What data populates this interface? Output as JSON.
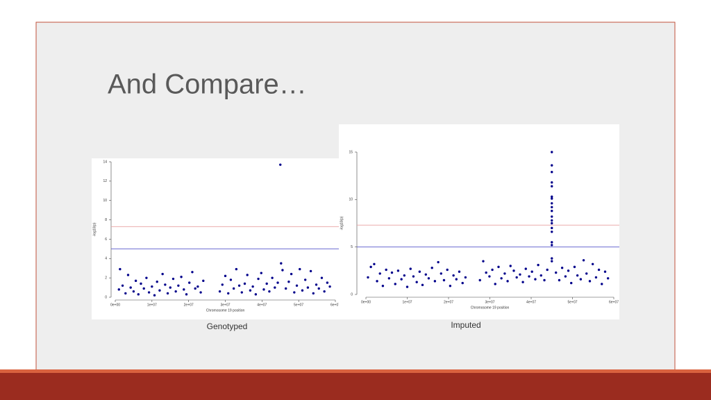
{
  "slide": {
    "title": "And Compare…",
    "captions": [
      "Genotyped",
      "Imputed"
    ]
  },
  "chart_data": [
    {
      "type": "scatter",
      "xlabel": "Chromosome 19 position",
      "ylabel": "-log10(p)",
      "color": "#00008b",
      "xlim": [
        0,
        60000000.0
      ],
      "ylim": [
        0,
        14
      ],
      "xticks": [
        {
          "value": 0,
          "label": "0e+00"
        },
        {
          "value": 10000000.0,
          "label": "1e+07"
        },
        {
          "value": 20000000.0,
          "label": "2e+07"
        },
        {
          "value": 30000000.0,
          "label": "3e+07"
        },
        {
          "value": 40000000.0,
          "label": "4e+07"
        },
        {
          "value": 50000000.0,
          "label": "5e+07"
        },
        {
          "value": 60000000.0,
          "label": "6e+07"
        }
      ],
      "yticks": [
        0,
        2,
        4,
        6,
        8,
        10,
        12,
        14
      ],
      "hlines": [
        {
          "value": 7.3,
          "color": "#e8a0a0"
        },
        {
          "value": 5,
          "color": "#5555cc"
        }
      ],
      "x": [
        1000000.0,
        1300000.0,
        2000000.0,
        2800000.0,
        3500000.0,
        4200000.0,
        5000000.0,
        5600000.0,
        6300000.0,
        7000000.0,
        7800000.0,
        8500000.0,
        9200000.0,
        10000000.0,
        10700000.0,
        11400000.0,
        12100000.0,
        12900000.0,
        13600000.0,
        14300000.0,
        15000000.0,
        15800000.0,
        16500000.0,
        17200000.0,
        18000000.0,
        18700000.0,
        19400000.0,
        20200000.0,
        21000000.0,
        21800000.0,
        22500000.0,
        23300000.0,
        24000000.0,
        28500000.0,
        29200000.0,
        30000000.0,
        30800000.0,
        31500000.0,
        32300000.0,
        33000000.0,
        33800000.0,
        34500000.0,
        35300000.0,
        36000000.0,
        36800000.0,
        37500000.0,
        38300000.0,
        39000000.0,
        39800000.0,
        40500000.0,
        41300000.0,
        42000000.0,
        42800000.0,
        43500000.0,
        44300000.0,
        45000000.0,
        45200000.0,
        45600000.0,
        46500000.0,
        47300000.0,
        48000000.0,
        48800000.0,
        49500000.0,
        50300000.0,
        51000000.0,
        51800000.0,
        52500000.0,
        53300000.0,
        54000000.0,
        54800000.0,
        55500000.0,
        56300000.0,
        57000000.0,
        57800000.0,
        58500000.0
      ],
      "values": [
        0.8,
        2.9,
        1.2,
        0.4,
        2.3,
        1.0,
        0.6,
        1.7,
        0.3,
        1.4,
        0.9,
        2.0,
        0.5,
        1.1,
        0.2,
        1.6,
        0.7,
        2.4,
        1.3,
        0.4,
        1.0,
        1.9,
        0.6,
        1.2,
        2.1,
        0.8,
        0.3,
        1.5,
        2.6,
        0.9,
        1.1,
        0.5,
        1.7,
        0.6,
        1.3,
        2.2,
        0.4,
        1.8,
        0.9,
        2.9,
        1.2,
        0.5,
        1.4,
        2.3,
        0.7,
        1.1,
        0.3,
        1.9,
        2.5,
        0.8,
        1.4,
        0.6,
        2.0,
        1.0,
        1.5,
        13.7,
        3.5,
        2.8,
        0.9,
        1.6,
        2.4,
        0.5,
        1.2,
        2.9,
        0.7,
        1.8,
        1.0,
        2.7,
        0.4,
        1.3,
        0.9,
        2.0,
        0.6,
        1.5,
        1.1
      ]
    },
    {
      "type": "scatter",
      "xlabel": "Chromosome 19 position",
      "ylabel": "-log10(p)",
      "color": "#00008b",
      "xlim": [
        0,
        60000000.0
      ],
      "ylim": [
        0,
        15
      ],
      "xticks": [
        {
          "value": 0,
          "label": "0e+00"
        },
        {
          "value": 10000000.0,
          "label": "1e+07"
        },
        {
          "value": 20000000.0,
          "label": "2e+07"
        },
        {
          "value": 30000000.0,
          "label": "3e+07"
        },
        {
          "value": 40000000.0,
          "label": "4e+07"
        },
        {
          "value": 50000000.0,
          "label": "5e+07"
        },
        {
          "value": 60000000.0,
          "label": "6e+07"
        }
      ],
      "yticks": [
        0,
        5,
        10,
        15
      ],
      "hlines": [
        {
          "value": 7.3,
          "color": "#e8a0a0"
        },
        {
          "value": 5,
          "color": "#5555cc"
        }
      ],
      "x": [
        500000.0,
        1200000.0,
        2000000.0,
        2700000.0,
        3400000.0,
        4100000.0,
        4900000.0,
        5600000.0,
        6300000.0,
        7100000.0,
        7800000.0,
        8600000.0,
        9300000.0,
        10000000.0,
        10800000.0,
        11500000.0,
        12300000.0,
        13000000.0,
        13700000.0,
        14500000.0,
        15200000.0,
        16000000.0,
        16700000.0,
        17500000.0,
        18200000.0,
        18900000.0,
        19700000.0,
        20400000.0,
        21200000.0,
        21900000.0,
        22600000.0,
        23400000.0,
        24100000.0,
        27600000.0,
        28400000.0,
        29100000.0,
        29900000.0,
        30600000.0,
        31300000.0,
        32100000.0,
        32800000.0,
        33600000.0,
        34300000.0,
        35000000.0,
        35800000.0,
        36500000.0,
        37300000.0,
        38000000.0,
        38700000.0,
        39500000.0,
        40200000.0,
        41000000.0,
        41700000.0,
        42400000.0,
        43200000.0,
        43900000.0,
        45000000.0,
        45000000.0,
        45000000.0,
        45000000.0,
        45000000.0,
        45000000.0,
        45000000.0,
        45000000.0,
        45000000.0,
        45000000.0,
        45000000.0,
        45000000.0,
        45000000.0,
        45000000.0,
        45000000.0,
        45000000.0,
        45000000.0,
        45000000.0,
        45000000.0,
        46000000.0,
        46800000.0,
        47500000.0,
        48300000.0,
        49000000.0,
        49700000.0,
        50500000.0,
        51200000.0,
        52000000.0,
        52700000.0,
        53400000.0,
        54200000.0,
        54900000.0,
        55700000.0,
        56400000.0,
        57100000.0,
        57900000.0,
        58600000.0
      ],
      "values": [
        1.8,
        2.9,
        3.2,
        1.4,
        2.2,
        0.9,
        2.6,
        1.7,
        2.3,
        1.1,
        2.5,
        1.6,
        2.0,
        0.8,
        2.7,
        1.9,
        1.3,
        2.4,
        1.0,
        2.1,
        1.7,
        2.8,
        1.4,
        3.4,
        2.2,
        1.5,
        2.6,
        0.9,
        2.0,
        1.6,
        2.4,
        1.2,
        1.8,
        1.5,
        3.5,
        2.3,
        1.9,
        2.6,
        1.1,
        2.9,
        1.7,
        2.2,
        1.4,
        3.0,
        2.5,
        1.8,
        2.1,
        1.3,
        2.7,
        1.9,
        2.4,
        1.6,
        3.1,
        2.0,
        1.5,
        2.6,
        15,
        13.6,
        12.9,
        11.8,
        11.4,
        10.3,
        10.1,
        9.6,
        9.2,
        8.8,
        8.2,
        7.8,
        7.5,
        7.0,
        6.6,
        5.5,
        5.2,
        3.8,
        3.5,
        2.3,
        1.5,
        2.8,
        1.9,
        2.5,
        1.2,
        2.9,
        2.0,
        1.6,
        3.6,
        2.2,
        1.4,
        3.2,
        1.8,
        2.6,
        1.1,
        2.4,
        1.7
      ]
    }
  ]
}
